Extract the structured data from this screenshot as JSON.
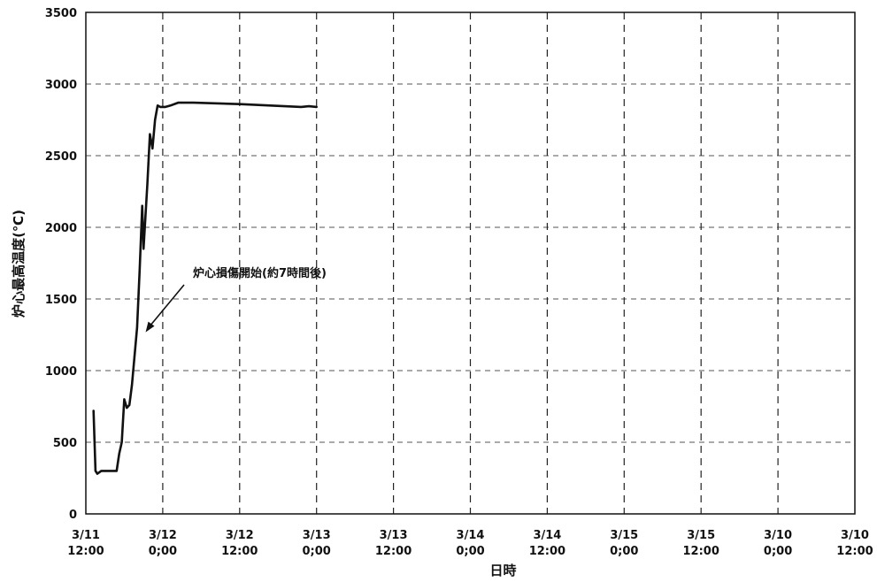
{
  "chart_data": {
    "type": "line",
    "xlabel": "日時",
    "ylabel": "炉心最高温度(℃)",
    "ylim": [
      0,
      3500
    ],
    "y_ticks": [
      0,
      500,
      1000,
      1500,
      2000,
      2500,
      3000,
      3500
    ],
    "x_tick_labels": [
      [
        "3/11",
        "12:00"
      ],
      [
        "3/12",
        "0;00"
      ],
      [
        "3/12",
        "12:00"
      ],
      [
        "3/13",
        "0;00"
      ],
      [
        "3/13",
        "12:00"
      ],
      [
        "3/14",
        "0;00"
      ],
      [
        "3/14",
        "12:00"
      ],
      [
        "3/15",
        "0;00"
      ],
      [
        "3/15",
        "12:00"
      ],
      [
        "3/10",
        "0;00"
      ],
      [
        "3/10",
        "12:00"
      ]
    ],
    "x_unit": "hours since 3/11 12:00",
    "xlim": [
      0,
      120
    ],
    "grid": true,
    "grid_style": "dashed",
    "legend": "none",
    "series": [
      {
        "color": "#111111",
        "x": [
          1.2,
          1.5,
          1.8,
          2.4,
          3.6,
          4.8,
          5.2,
          5.6,
          6.0,
          6.4,
          6.8,
          7.2,
          8.0,
          8.4,
          8.8,
          9.0,
          9.6,
          10.0,
          10.4,
          10.8,
          11.2,
          11.6,
          12.0,
          12.4,
          12.8,
          13.2,
          14.4,
          16.8,
          24.0,
          33.6,
          34.8,
          36.0
        ],
        "y": [
          720,
          300,
          280,
          300,
          300,
          300,
          420,
          500,
          800,
          740,
          760,
          900,
          1300,
          1700,
          2150,
          1850,
          2300,
          2650,
          2550,
          2750,
          2850,
          2840,
          2840,
          2840,
          2845,
          2850,
          2870,
          2870,
          2860,
          2840,
          2845,
          2840
        ]
      }
    ],
    "annotations": [
      {
        "text": "炉心損傷開始(約7時間後)",
        "x": 9.6,
        "y": 1700
      }
    ]
  }
}
